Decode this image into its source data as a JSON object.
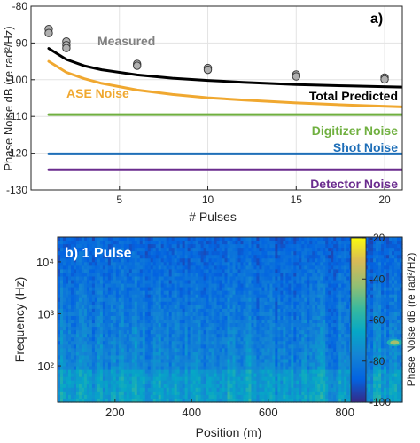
{
  "chart_data": [
    {
      "type": "line",
      "panel_label": "a)",
      "xlabel": "# Pulses",
      "ylabel": "Phase Noise dB (re rad²/Hz)",
      "xlim": [
        0,
        21
      ],
      "ylim": [
        -130,
        -80
      ],
      "xticks": [
        5,
        10,
        15,
        20
      ],
      "yticks": [
        -80,
        -90,
        -100,
        -110,
        -120,
        -130
      ],
      "x_tick_labels": [
        "5",
        "10",
        "15",
        "20"
      ],
      "y_tick_labels": [
        "-80",
        "-90",
        "-100",
        "-110",
        "-120",
        "-130"
      ],
      "grid": true,
      "series": [
        {
          "name": "Measured",
          "kind": "scatter",
          "color": "#b0b0b0",
          "label_color": "#808080",
          "points": [
            [
              1,
              -86.2
            ],
            [
              1,
              -87.3
            ],
            [
              2,
              -89.6
            ],
            [
              2,
              -90.6
            ],
            [
              2,
              -91.4
            ],
            [
              6,
              -95.7
            ],
            [
              6,
              -96.2
            ],
            [
              10,
              -96.8
            ],
            [
              10,
              -97.3
            ],
            [
              15,
              -98.6
            ],
            [
              15,
              -99.1
            ],
            [
              20,
              -99.4
            ],
            [
              20,
              -99.9
            ]
          ]
        },
        {
          "name": "Total Predicted",
          "kind": "line",
          "color": "#000000",
          "label_color": "#000000",
          "x": [
            1,
            2,
            3,
            4,
            6,
            8,
            10,
            12,
            15,
            18,
            21
          ],
          "y": [
            -91.5,
            -94.5,
            -96.2,
            -97.3,
            -98.7,
            -99.6,
            -100.2,
            -100.7,
            -101.3,
            -101.7,
            -102.0
          ]
        },
        {
          "name": "ASE Noise",
          "kind": "line",
          "color": "#f0a830",
          "label_color": "#f0a830",
          "x": [
            1,
            2,
            3,
            4,
            6,
            8,
            10,
            12,
            15,
            18,
            21
          ],
          "y": [
            -95.0,
            -98.0,
            -99.7,
            -101.0,
            -102.8,
            -104.0,
            -104.9,
            -105.5,
            -106.3,
            -106.9,
            -107.4
          ]
        },
        {
          "name": "Digitizer Noise",
          "kind": "line",
          "color": "#70b040",
          "label_color": "#70b040",
          "x": [
            1,
            21
          ],
          "y": [
            -109.5,
            -109.5
          ]
        },
        {
          "name": "Shot Noise",
          "kind": "line",
          "color": "#1f6fb8",
          "label_color": "#1f6fb8",
          "x": [
            1,
            21
          ],
          "y": [
            -120.2,
            -120.2
          ]
        },
        {
          "name": "Detector Noise",
          "kind": "line",
          "color": "#6a2c8e",
          "label_color": "#6a2c8e",
          "x": [
            1,
            21
          ],
          "y": [
            -124.5,
            -124.5
          ]
        }
      ]
    },
    {
      "type": "heatmap",
      "panel_label": "b) 1 Pulse",
      "xlabel": "Position (m)",
      "ylabel": "Frequency (Hz)",
      "xlim": [
        50,
        950
      ],
      "ylim": [
        20,
        30000
      ],
      "y_scale": "log",
      "xticks": [
        200,
        400,
        600,
        800
      ],
      "x_tick_labels": [
        "200",
        "400",
        "600",
        "800"
      ],
      "y_tick_labels": [
        "10²",
        "10³",
        "10⁴"
      ],
      "colorbar": {
        "label": "Phase Noise dB (re rad²/Hz)",
        "range": [
          -100,
          -20
        ],
        "ticks": [
          -20,
          -40,
          -60,
          -80,
          -100
        ],
        "tick_labels": [
          "-20",
          "-40",
          "-60",
          "-80",
          "-100"
        ],
        "colormap": "parula"
      },
      "features": [
        {
          "description": "hot spot",
          "position_m": 930,
          "frequency_hz": 280,
          "value_db": -40
        }
      ]
    }
  ]
}
